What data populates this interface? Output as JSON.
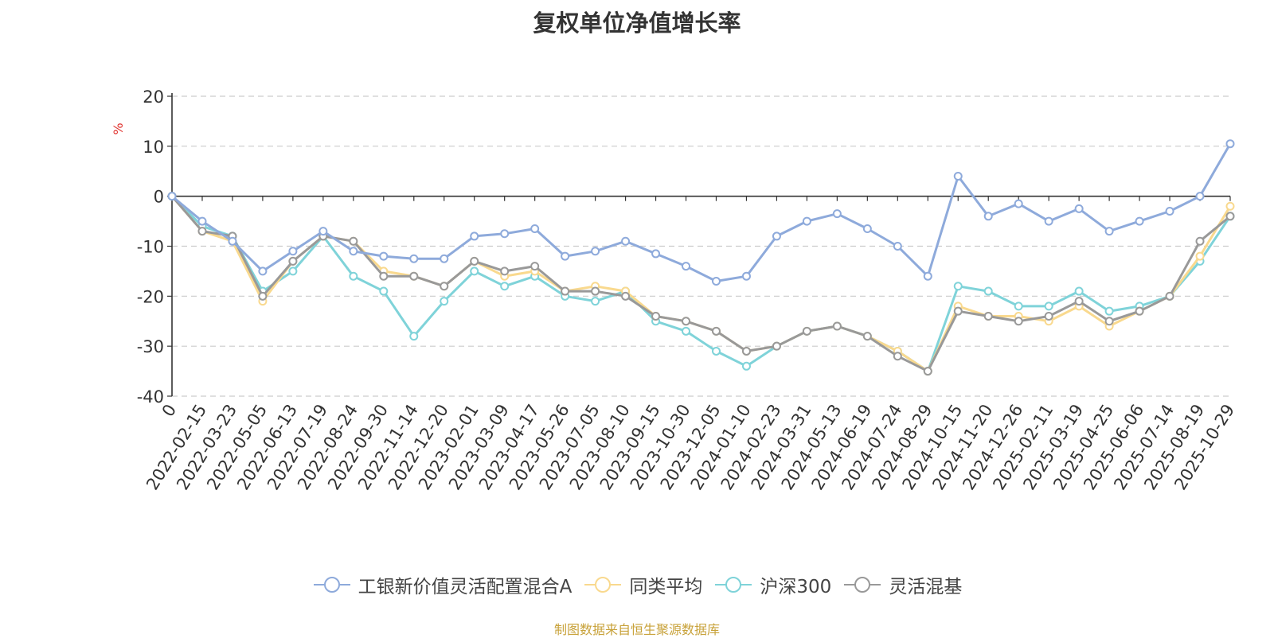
{
  "chart_data": {
    "type": "line",
    "title": "复权单位净值增长率",
    "ylabel": "%",
    "ylim": [
      -40,
      20
    ],
    "yticks": [
      20,
      10,
      0,
      -10,
      -20,
      -30,
      -40
    ],
    "x_tick_labels": [
      "0",
      "2022-02-15",
      "2022-03-23",
      "2022-05-05",
      "2022-06-13",
      "2022-07-19",
      "2022-08-24",
      "2022-09-30",
      "2022-11-14",
      "2022-12-20",
      "2023-02-01",
      "2023-03-09",
      "2023-04-17",
      "2023-05-26",
      "2023-07-05",
      "2023-08-10",
      "2023-09-15",
      "2023-10-30",
      "2023-12-05",
      "2024-01-10",
      "2024-02-23",
      "2024-03-31",
      "2024-05-13",
      "2024-06-19",
      "2024-07-24",
      "2024-08-29",
      "2024-10-15",
      "2024-11-20",
      "2024-12-26",
      "2025-02-11",
      "2025-03-19",
      "2025-04-25",
      "2025-06-06",
      "2025-07-14",
      "2025-08-19",
      "2025-10-29"
    ],
    "grid": true,
    "legend_position": "bottom",
    "series": [
      {
        "name": "工银新价值灵活配置混合A",
        "color": "#8eaadb",
        "values": [
          0,
          -5,
          -9,
          -15,
          -11,
          -7,
          -11,
          -12,
          -12.5,
          -12.5,
          -8,
          -7.5,
          -6.5,
          -12,
          -11,
          -9,
          -11.5,
          -14,
          -17,
          -16,
          -8,
          -5,
          -3.5,
          -6.5,
          -10,
          -16,
          4,
          -4,
          -1.5,
          -5,
          -2.5,
          -7,
          -5,
          -3,
          0,
          10.5
        ]
      },
      {
        "name": "同类平均",
        "color": "#f9d98e",
        "values": [
          0,
          -7,
          -9,
          -21,
          -13,
          -8,
          -9,
          -15,
          -16,
          -18,
          -13,
          -16,
          -15,
          -19,
          -18,
          -19,
          -24,
          -25,
          -27,
          -31,
          -30,
          -27,
          -26,
          -28,
          -31,
          -35,
          -22,
          -24,
          -24,
          -25,
          -22,
          -26,
          -23,
          -20,
          -12,
          -2
        ]
      },
      {
        "name": "沪深300",
        "color": "#7fd3d9",
        "values": [
          0,
          -6,
          -8,
          -19,
          -15,
          -8,
          -16,
          -19,
          -28,
          -21,
          -15,
          -18,
          -16,
          -20,
          -21,
          -19,
          -25,
          -27,
          -31,
          -34,
          -30,
          -27,
          -26,
          -28,
          -31,
          -35,
          -18,
          -19,
          -22,
          -22,
          -19,
          -23,
          -22,
          -20,
          -13,
          -4
        ]
      },
      {
        "name": "灵活混基",
        "color": "#999999",
        "values": [
          0,
          -7,
          -8,
          -20,
          -13,
          -8,
          -9,
          -16,
          -16,
          -18,
          -13,
          -15,
          -14,
          -19,
          -19,
          -20,
          -24,
          -25,
          -27,
          -31,
          -30,
          -27,
          -26,
          -28,
          -32,
          -35,
          -23,
          -24,
          -25,
          -24,
          -21,
          -25,
          -23,
          -20,
          -9,
          -4
        ]
      }
    ]
  },
  "source_note": "制图数据来自恒生聚源数据库"
}
